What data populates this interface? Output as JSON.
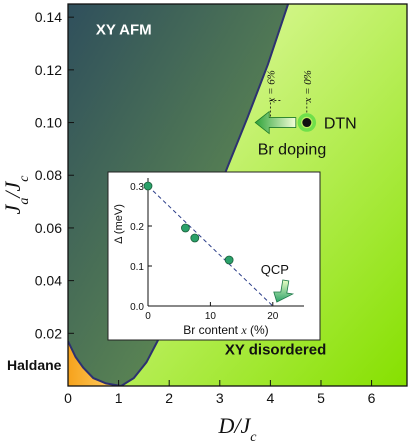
{
  "colors": {
    "afm_dark": "#2f4f5c",
    "afm_light": "#6f9e4e",
    "disordered_light": "#f4ffc4",
    "disordered_dark": "#86e000",
    "haldane": "#f6a21c",
    "boundary": "#2d3170",
    "arrow_green": "#2fa33a",
    "inset_point": "#2aa16a",
    "dtn_ring": "#6fe04a"
  },
  "chart_data": [
    {
      "type": "phase-diagram",
      "xlabel_main": "D/J",
      "xlabel_sub": "c",
      "ylabel_main": "J",
      "ylabel_mid": "a",
      "ylabel_tail": "/J",
      "ylabel_sub": "c",
      "xlim": [
        0,
        6.7
      ],
      "ylim": [
        0,
        0.145
      ],
      "xticks": [
        0,
        1,
        2,
        3,
        4,
        5,
        6
      ],
      "xtick_labels": [
        "0",
        "1",
        "2",
        "3",
        "4",
        "5",
        "6"
      ],
      "yticks": [
        0.02,
        0.04,
        0.06,
        0.08,
        0.1,
        0.12,
        0.14
      ],
      "ytick_labels": [
        "0.02",
        "0.04",
        "0.06",
        "0.08",
        "0.10",
        "0.12",
        "0.14"
      ],
      "regions": [
        {
          "name": "XY AFM"
        },
        {
          "name": "XY disordered"
        },
        {
          "name": "Haldane"
        }
      ],
      "boundary_right": [
        [
          1.05,
          0.0
        ],
        [
          1.3,
          0.003
        ],
        [
          1.55,
          0.009
        ],
        [
          1.85,
          0.02
        ],
        [
          2.15,
          0.035
        ],
        [
          2.45,
          0.05
        ],
        [
          2.8,
          0.066
        ],
        [
          3.15,
          0.083
        ],
        [
          3.55,
          0.102
        ],
        [
          3.95,
          0.122
        ],
        [
          4.35,
          0.145
        ]
      ],
      "boundary_left": [
        [
          0.0,
          0.017
        ],
        [
          0.15,
          0.011
        ],
        [
          0.3,
          0.007
        ],
        [
          0.5,
          0.003
        ],
        [
          0.75,
          0.001
        ],
        [
          1.05,
          0.0
        ]
      ],
      "dtn_point": {
        "x": 4.72,
        "y": 0.1,
        "label": "DTN"
      },
      "doping_markers": [
        {
          "x": 4.72,
          "label": "x = 0%"
        },
        {
          "x": 4.0,
          "label": "x = 6%"
        }
      ],
      "arrow_label": "Br doping"
    },
    {
      "type": "scatter",
      "xlabel": "Br content",
      "xlabel_var": "x",
      "xlabel_unit": "(%)",
      "ylabel": "Δ (meV)",
      "xlim": [
        0,
        25
      ],
      "ylim": [
        0,
        0.32
      ],
      "xticks": [
        0,
        10,
        20
      ],
      "xtick_labels": [
        "0",
        "10",
        "20"
      ],
      "yticks": [
        0.0,
        0.1,
        0.2,
        0.3
      ],
      "ytick_labels": [
        "0.0",
        "0.1",
        "0.2",
        "0.3"
      ],
      "points": [
        {
          "x": 0.0,
          "y": 0.3
        },
        {
          "x": 6.0,
          "y": 0.195
        },
        {
          "x": 7.5,
          "y": 0.17
        },
        {
          "x": 13.0,
          "y": 0.115
        }
      ],
      "fit_line": [
        [
          0.0,
          0.3
        ],
        [
          20.0,
          0.0
        ]
      ],
      "qcp": {
        "x": 20.0,
        "label": "QCP"
      }
    }
  ]
}
